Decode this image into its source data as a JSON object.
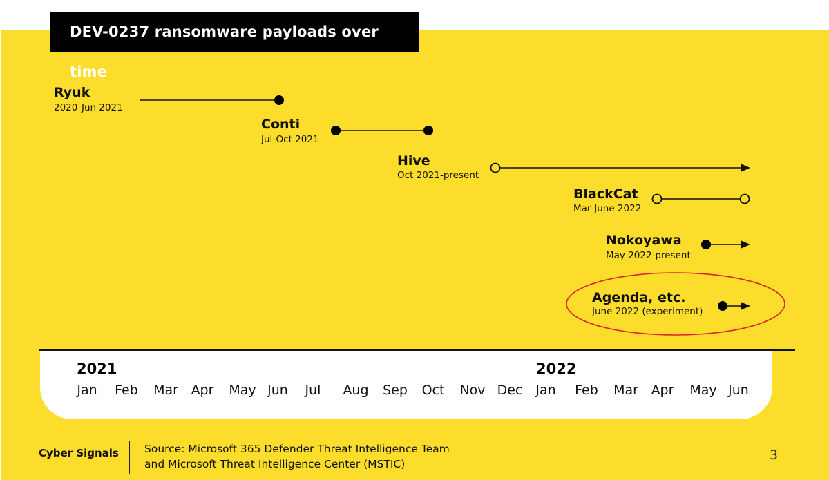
{
  "title": "DEV-0237 ransomware payloads over time",
  "payloads": [
    {
      "name": "Ryuk",
      "range": "2020-Jun 2021"
    },
    {
      "name": "Conti",
      "range": "Jul-Oct 2021"
    },
    {
      "name": "Hive",
      "range": "Oct 2021-present"
    },
    {
      "name": "BlackCat",
      "range": "Mar-June 2022"
    },
    {
      "name": "Nokoyawa",
      "range": "May 2022-present"
    },
    {
      "name": "Agenda, etc.",
      "range": "June 2022 (experiment)"
    }
  ],
  "axis": {
    "years": [
      "2021",
      "2022"
    ],
    "months": [
      "Jan",
      "Feb",
      "Mar",
      "Apr",
      "May",
      "Jun",
      "Jul",
      "Aug",
      "Sep",
      "Oct",
      "Nov",
      "Dec",
      "Jan",
      "Feb",
      "Mar",
      "Apr",
      "May",
      "Jun"
    ]
  },
  "footer": {
    "brand": "Cyber Signals",
    "source_line1": "Source: Microsoft 365 Defender Threat Intelligence Team",
    "source_line2": "and Microsoft Threat Intelligence Center (MSTIC)",
    "page_number": "3"
  },
  "colors": {
    "background": "#fcdd2b",
    "title_bar": "#000000",
    "highlight": "#e0202a"
  }
}
